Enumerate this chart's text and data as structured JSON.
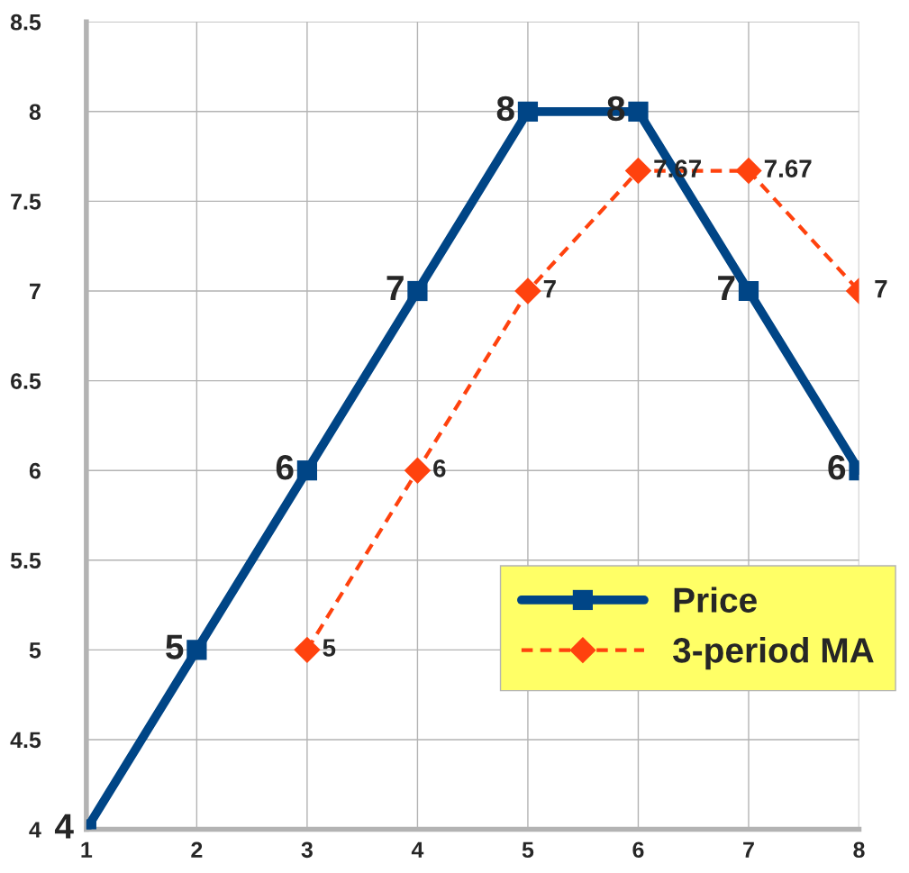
{
  "chart_data": {
    "type": "line",
    "series": [
      {
        "name": "Price",
        "color": "#004586",
        "x": [
          1,
          2,
          3,
          4,
          5,
          6,
          7,
          8
        ],
        "values": [
          4,
          5,
          6,
          7,
          8,
          8,
          7,
          6
        ],
        "marker": "square",
        "line_style": "solid"
      },
      {
        "name": "3-period MA",
        "color": "#ff420e",
        "x": [
          3,
          4,
          5,
          6,
          7,
          8
        ],
        "values": [
          5,
          6,
          7,
          7.67,
          7.67,
          7
        ],
        "marker": "diamond",
        "line_style": "dashed"
      }
    ],
    "xlim": [
      1,
      8
    ],
    "xticks": [
      1,
      2,
      3,
      4,
      5,
      6,
      7,
      8
    ],
    "ylim": [
      4,
      8.5
    ],
    "yticks": [
      4,
      4.5,
      5,
      5.5,
      6,
      6.5,
      7,
      7.5,
      8,
      8.5
    ],
    "grid": true,
    "legend": "bottom right",
    "data_labels": true
  }
}
